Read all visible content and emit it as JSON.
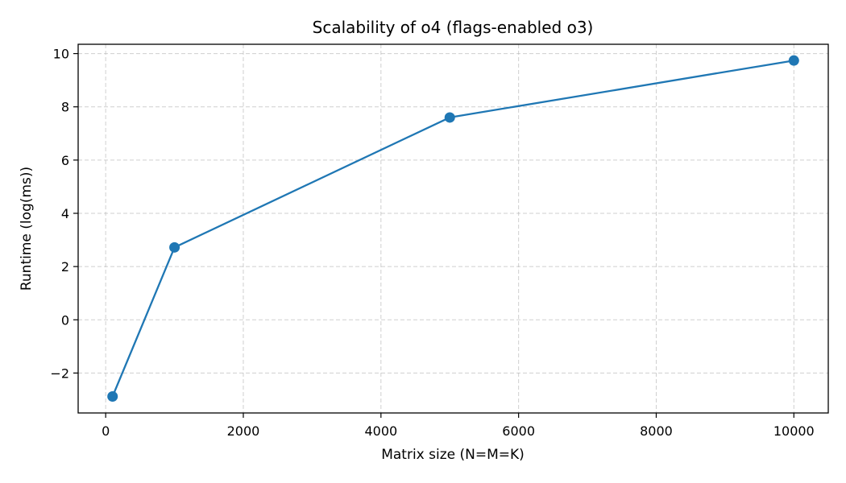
{
  "chart_data": {
    "type": "line",
    "title": "Scalability of o4 (flags-enabled o3)",
    "xlabel": "Matrix size (N=M=K)",
    "ylabel": "Runtime (log(ms))",
    "xlim": [
      -400,
      10500
    ],
    "ylim": [
      -3.5,
      10.35
    ],
    "xticks": [
      0,
      2000,
      4000,
      6000,
      8000,
      10000
    ],
    "yticks": [
      -2,
      0,
      2,
      4,
      6,
      8,
      10
    ],
    "grid": true,
    "series": [
      {
        "color": "#1f77b4",
        "marker": "circle",
        "x": [
          100,
          1000,
          5000,
          10000
        ],
        "y": [
          -2.88,
          2.72,
          7.6,
          9.74
        ]
      }
    ]
  }
}
